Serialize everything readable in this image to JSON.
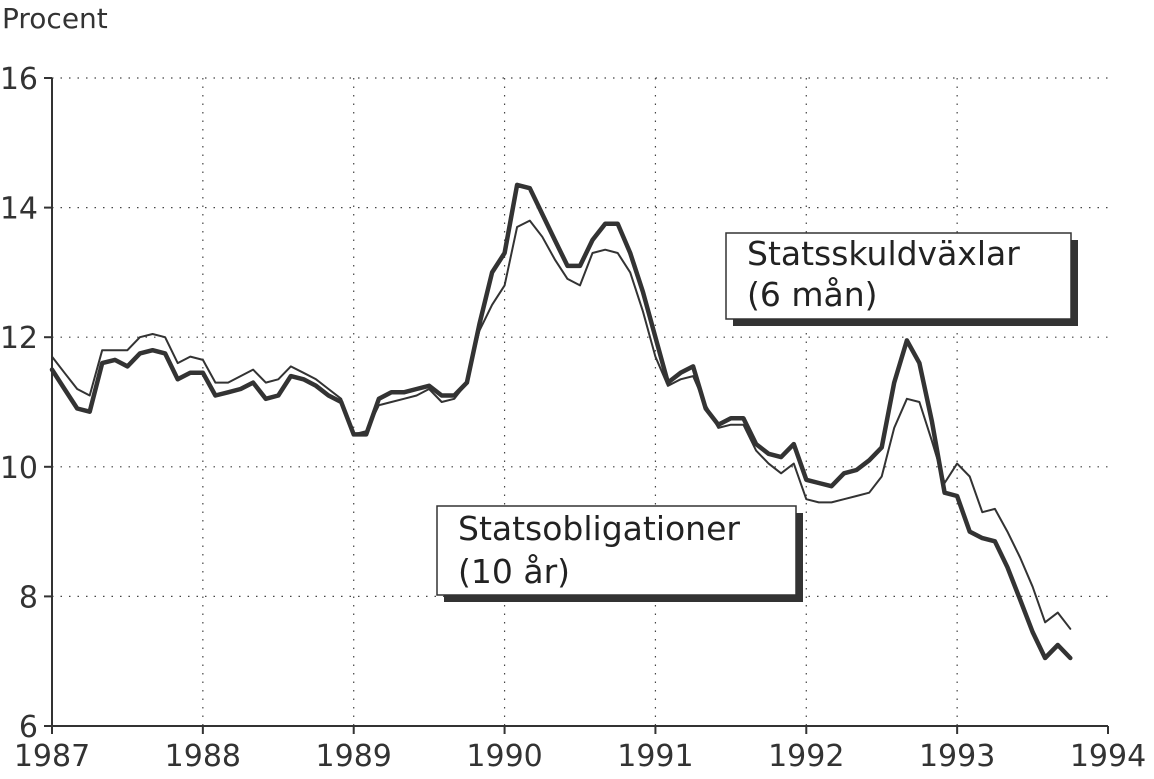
{
  "chart_data": {
    "type": "line",
    "title": "",
    "ylabel": "Procent",
    "xlabel": "",
    "xlim": [
      1987,
      1994
    ],
    "ylim": [
      6,
      16
    ],
    "x_ticks": [
      1987,
      1988,
      1989,
      1990,
      1991,
      1992,
      1993,
      1994
    ],
    "y_ticks": [
      6,
      8,
      10,
      12,
      14,
      16
    ],
    "x_tick_labels": [
      "1987",
      "1988",
      "1989",
      "1990",
      "1991",
      "1992",
      "1993",
      "1994"
    ],
    "y_tick_labels": [
      "6",
      "8",
      "10",
      "12",
      "14",
      "16"
    ],
    "grid": "dotted",
    "series": [
      {
        "name": "Statsskuldväxlar (6 mån)",
        "label_lines": [
          "Statsskuldväxlar",
          "(6 mån)"
        ],
        "style": "thick",
        "color": "#333333",
        "x": [
          1987.0,
          1987.083,
          1987.167,
          1987.25,
          1987.333,
          1987.417,
          1987.5,
          1987.583,
          1987.667,
          1987.75,
          1987.833,
          1987.917,
          1988.0,
          1988.083,
          1988.167,
          1988.25,
          1988.333,
          1988.417,
          1988.5,
          1988.583,
          1988.667,
          1988.75,
          1988.833,
          1988.917,
          1989.0,
          1989.083,
          1989.167,
          1989.25,
          1989.333,
          1989.417,
          1989.5,
          1989.583,
          1989.667,
          1989.75,
          1989.833,
          1989.917,
          1990.0,
          1990.083,
          1990.167,
          1990.25,
          1990.333,
          1990.417,
          1990.5,
          1990.583,
          1990.667,
          1990.75,
          1990.833,
          1990.917,
          1991.0,
          1991.083,
          1991.167,
          1991.25,
          1991.333,
          1991.417,
          1991.5,
          1991.583,
          1991.667,
          1991.75,
          1991.833,
          1991.917,
          1992.0,
          1992.083,
          1992.167,
          1992.25,
          1992.333,
          1992.417,
          1992.5,
          1992.583,
          1992.667,
          1992.75,
          1992.833,
          1992.917,
          1993.0,
          1993.083,
          1993.167,
          1993.25,
          1993.333,
          1993.417,
          1993.5,
          1993.583,
          1993.667,
          1993.75
        ],
        "values": [
          11.5,
          11.2,
          10.9,
          10.85,
          11.6,
          11.65,
          11.55,
          11.75,
          11.8,
          11.75,
          11.35,
          11.45,
          11.45,
          11.1,
          11.15,
          11.2,
          11.3,
          11.05,
          11.1,
          11.4,
          11.35,
          11.25,
          11.1,
          11.0,
          10.5,
          10.5,
          11.05,
          11.15,
          11.15,
          11.2,
          11.25,
          11.1,
          11.1,
          11.3,
          12.2,
          13.0,
          13.3,
          14.35,
          14.3,
          13.9,
          13.5,
          13.1,
          13.1,
          13.5,
          13.75,
          13.75,
          13.3,
          12.7,
          12.0,
          11.3,
          11.45,
          11.55,
          10.9,
          10.65,
          10.75,
          10.75,
          10.35,
          10.2,
          10.15,
          10.35,
          9.8,
          9.75,
          9.7,
          9.9,
          9.95,
          10.1,
          10.3,
          11.3,
          11.95,
          11.6,
          10.7,
          9.6,
          9.55,
          9.0,
          8.9,
          8.85,
          8.45,
          7.95,
          7.45,
          7.05,
          7.25,
          7.05
        ]
      },
      {
        "name": "Statsobligationer (10 år)",
        "label_lines": [
          "Statsobligationer",
          "(10 år)"
        ],
        "style": "thin",
        "color": "#333333",
        "x": [
          1987.0,
          1987.083,
          1987.167,
          1987.25,
          1987.333,
          1987.417,
          1987.5,
          1987.583,
          1987.667,
          1987.75,
          1987.833,
          1987.917,
          1988.0,
          1988.083,
          1988.167,
          1988.25,
          1988.333,
          1988.417,
          1988.5,
          1988.583,
          1988.667,
          1988.75,
          1988.833,
          1988.917,
          1989.0,
          1989.083,
          1989.167,
          1989.25,
          1989.333,
          1989.417,
          1989.5,
          1989.583,
          1989.667,
          1989.75,
          1989.833,
          1989.917,
          1990.0,
          1990.083,
          1990.167,
          1990.25,
          1990.333,
          1990.417,
          1990.5,
          1990.583,
          1990.667,
          1990.75,
          1990.833,
          1990.917,
          1991.0,
          1991.083,
          1991.167,
          1991.25,
          1991.333,
          1991.417,
          1991.5,
          1991.583,
          1991.667,
          1991.75,
          1991.833,
          1991.917,
          1992.0,
          1992.083,
          1992.167,
          1992.25,
          1992.333,
          1992.417,
          1992.5,
          1992.583,
          1992.667,
          1992.75,
          1992.833,
          1992.917,
          1993.0,
          1993.083,
          1993.167,
          1993.25,
          1993.333,
          1993.417,
          1993.5,
          1993.583,
          1993.667,
          1993.75
        ],
        "values": [
          11.7,
          11.45,
          11.2,
          11.1,
          11.8,
          11.8,
          11.8,
          12.0,
          12.05,
          12.0,
          11.6,
          11.7,
          11.65,
          11.3,
          11.3,
          11.4,
          11.5,
          11.3,
          11.35,
          11.55,
          11.45,
          11.35,
          11.2,
          11.05,
          10.5,
          10.55,
          10.95,
          11.0,
          11.05,
          11.1,
          11.2,
          11.0,
          11.05,
          11.3,
          12.1,
          12.5,
          12.8,
          13.7,
          13.8,
          13.55,
          13.2,
          12.9,
          12.8,
          13.3,
          13.35,
          13.3,
          13.0,
          12.4,
          11.7,
          11.25,
          11.35,
          11.4,
          10.95,
          10.6,
          10.65,
          10.65,
          10.25,
          10.05,
          9.9,
          10.05,
          9.5,
          9.45,
          9.45,
          9.5,
          9.55,
          9.6,
          9.85,
          10.6,
          11.05,
          11.0,
          10.4,
          9.75,
          10.05,
          9.85,
          9.3,
          9.35,
          9.0,
          8.6,
          8.15,
          7.6,
          7.75,
          7.5
        ]
      }
    ]
  }
}
